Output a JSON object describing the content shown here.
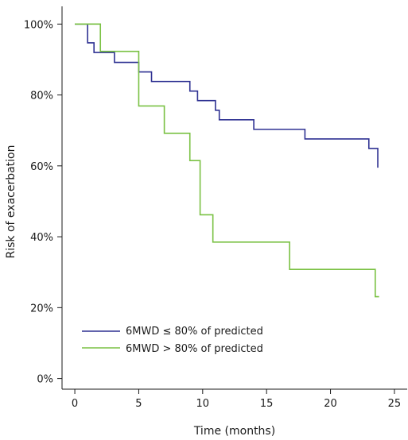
{
  "chart_data": {
    "type": "line",
    "step": true,
    "xlabel": "Time (months)",
    "ylabel": "Risk of exacerbation",
    "xlim": [
      -1,
      26
    ],
    "ylim": [
      -3,
      105
    ],
    "xticks": [
      0,
      5,
      10,
      15,
      20,
      25
    ],
    "xtick_labels": [
      "0",
      "5",
      "10",
      "15",
      "20",
      "25"
    ],
    "yticks": [
      0,
      20,
      40,
      60,
      80,
      100
    ],
    "ytick_labels": [
      "0%",
      "20%",
      "40%",
      "60%",
      "80%",
      "100%"
    ],
    "grid": false,
    "legend_position": "bottom-left",
    "series": [
      {
        "name": "6MWD ≤ 80% of predicted",
        "color": "#2e3192",
        "x": [
          0,
          1,
          1.5,
          2.2,
          3.1,
          5,
          6,
          9,
          9.6,
          10.1,
          11,
          11.3,
          11.5,
          14,
          18,
          23,
          23.3,
          23.7
        ],
        "y": [
          100,
          94.7,
          92,
          92,
          89.2,
          86.5,
          83.8,
          81.1,
          78.4,
          78.4,
          75.7,
          73,
          73,
          70.3,
          67.6,
          64.9,
          64.9,
          59.5
        ]
      },
      {
        "name": "6MWD > 80% of predicted",
        "color": "#7ac143",
        "x": [
          0,
          2,
          5,
          7,
          9,
          9.8,
          10.8,
          16.8,
          23.5,
          23.8
        ],
        "y": [
          100,
          92.3,
          76.9,
          69.2,
          61.5,
          46.2,
          38.5,
          30.8,
          23.1,
          23.1
        ]
      }
    ]
  }
}
